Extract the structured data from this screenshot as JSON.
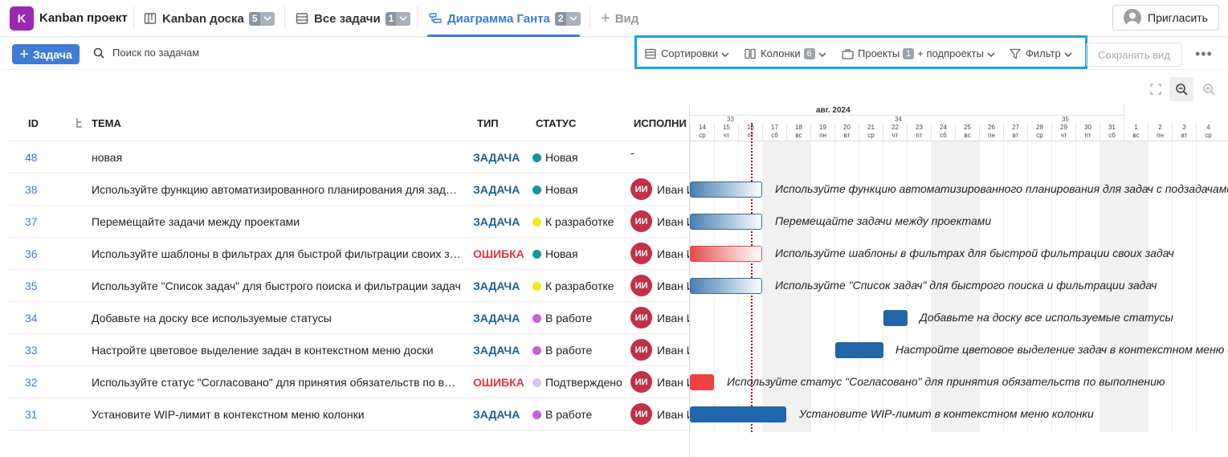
{
  "project": {
    "avatar_letter": "K",
    "name": "Kanban проект",
    "color": "#9c27b0"
  },
  "tabs": [
    {
      "label": "Kanban доска",
      "count": "5",
      "icon": "board-icon"
    },
    {
      "label": "Все задачи",
      "count": "1",
      "icon": "list-icon"
    },
    {
      "label": "Диаграмма Ганта",
      "count": "2",
      "icon": "gantt-icon",
      "active": true
    }
  ],
  "add_view_label": "Вид",
  "invite_label": "Пригласить",
  "toolbar": {
    "add_task_label": "Задача",
    "search_placeholder": "Поиск по задачам",
    "sort_label": "Сортировки",
    "columns_label": "Колонки",
    "columns_count": "6",
    "projects_label": "Проекты",
    "projects_count": "1",
    "subprojects_label": "+ подпроекты",
    "filter_label": "Фильтр",
    "save_view_label": "Сохранить вид",
    "more_label": "•••"
  },
  "table": {
    "headers": {
      "id": "ID",
      "title": "ТЕМА",
      "type": "ТИП",
      "status": "СТАТУС",
      "assignee": "ИСПОЛНИ"
    },
    "rows": [
      {
        "id": "48",
        "title": "новая",
        "type": "ЗАДАЧА",
        "type_color": "#1f5f99",
        "status": "Новая",
        "status_color": "#17949b",
        "assignee": "-",
        "initials": ""
      },
      {
        "id": "38",
        "title": "Используйте функцию автоматизированного планирования для задач с подзадачами",
        "type": "ЗАДАЧА",
        "type_color": "#1f5f99",
        "status": "Новая",
        "status_color": "#17949b",
        "assignee": "Иван Иванов",
        "initials": "ИИ"
      },
      {
        "id": "37",
        "title": "Перемещайте задачи между проектами",
        "type": "ЗАДАЧА",
        "type_color": "#1f5f99",
        "status": "К разработке",
        "status_color": "#f2ea1c",
        "assignee": "Иван Иванов",
        "initials": "ИИ"
      },
      {
        "id": "36",
        "title": "Используйте шаблоны в фильтрах для быстрой фильтрации своих задач",
        "type": "ОШИБКА",
        "type_color": "#e53340",
        "status": "Новая",
        "status_color": "#17949b",
        "assignee": "Иван Иванов",
        "initials": "ИИ"
      },
      {
        "id": "35",
        "title": "Используйте \"Список задач\" для быстрого поиска и фильтрации задач",
        "type": "ЗАДАЧА",
        "type_color": "#1f5f99",
        "status": "К разработке",
        "status_color": "#f2ea1c",
        "assignee": "Иван Иванов",
        "initials": "ИИ"
      },
      {
        "id": "34",
        "title": "Добавьте на доску все используемые статусы",
        "type": "ЗАДАЧА",
        "type_color": "#1f5f99",
        "status": "В работе",
        "status_color": "#c95fd9",
        "assignee": "Иван Иванов",
        "initials": "ИИ"
      },
      {
        "id": "33",
        "title": "Настройте цветовое выделение задач в контекстном меню доски",
        "type": "ЗАДАЧА",
        "type_color": "#1f5f99",
        "status": "В работе",
        "status_color": "#c95fd9",
        "assignee": "Иван Иванов",
        "initials": "ИИ"
      },
      {
        "id": "32",
        "title": "Используйте статус \"Согласовано\" для принятия обязательств по выполнению",
        "type": "ОШИБКА",
        "type_color": "#e53340",
        "status": "Подтверждено",
        "status_color": "#d9c2ee",
        "assignee": "Иван Иванов",
        "initials": "ИИ"
      },
      {
        "id": "31",
        "title": "Установите WIP-лимит в контекстном меню колонки",
        "type": "ЗАДАЧА",
        "type_color": "#1f5f99",
        "status": "В работе",
        "status_color": "#c95fd9",
        "assignee": "Иван Иванов",
        "initials": "ИИ"
      }
    ]
  },
  "gantt": {
    "month_label": "авг. 2024",
    "week_labels": [
      "33",
      "34",
      "35"
    ],
    "days": [
      {
        "d": "14",
        "w": "ср"
      },
      {
        "d": "15",
        "w": "чт"
      },
      {
        "d": "16",
        "w": "пт"
      },
      {
        "d": "17",
        "w": "сб"
      },
      {
        "d": "18",
        "w": "вс"
      },
      {
        "d": "19",
        "w": "пн"
      },
      {
        "d": "20",
        "w": "вт"
      },
      {
        "d": "21",
        "w": "ср"
      },
      {
        "d": "22",
        "w": "чт"
      },
      {
        "d": "23",
        "w": "пт"
      },
      {
        "d": "24",
        "w": "сб"
      },
      {
        "d": "25",
        "w": "вс"
      },
      {
        "d": "26",
        "w": "пн"
      },
      {
        "d": "27",
        "w": "вт"
      },
      {
        "d": "28",
        "w": "ср"
      },
      {
        "d": "29",
        "w": "чт"
      },
      {
        "d": "30",
        "w": "пт"
      },
      {
        "d": "31",
        "w": "сб"
      },
      {
        "d": "1",
        "w": "вс"
      },
      {
        "d": "2",
        "w": "пн"
      },
      {
        "d": "3",
        "w": "вт"
      },
      {
        "d": "4",
        "w": "ср"
      }
    ],
    "bars": [
      {
        "label": "Используйте функцию автоматизированного планирования для задач с подзадачами",
        "style": "fade-blue"
      },
      {
        "label": "Перемещайте задачи между проектами",
        "style": "fade-blue"
      },
      {
        "label": "Используйте шаблоны в фильтрах для быстрой фильтрации своих задач",
        "style": "fade-red"
      },
      {
        "label": "Используйте \"Список задач\" для быстрого поиска и фильтрации задач",
        "style": "fade-blue"
      },
      {
        "label": "Добавьте на доску все используемые статусы",
        "style": "solid-blue"
      },
      {
        "label": "Настройте цветовое выделение задач в контекстном меню доски",
        "style": "solid-blue"
      },
      {
        "label": "Используйте статус \"Согласовано\" для принятия обязательств по выполнению",
        "style": "solid-red"
      },
      {
        "label": "Установите WIP-лимит в контекстном меню колонки",
        "style": "solid-blue"
      }
    ]
  }
}
